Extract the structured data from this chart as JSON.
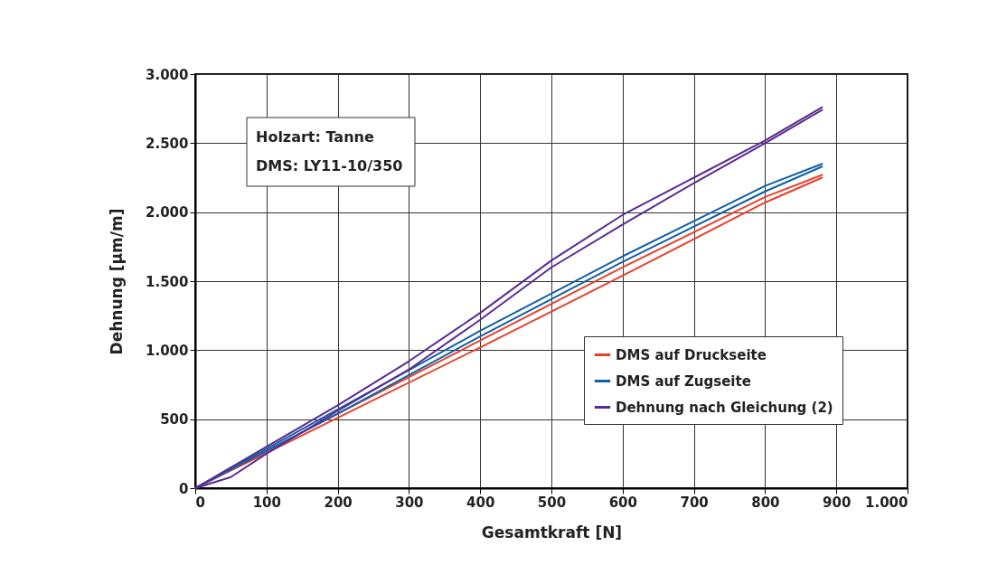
{
  "chart_data": {
    "type": "line",
    "xlabel": "Gesamtkraft [N]",
    "ylabel": "Dehnung [µm/m]",
    "annotations": [
      "Holzart: Tanne",
      "DMS: LY11-10/350"
    ],
    "xlim": [
      0,
      1000
    ],
    "xticks": [
      0,
      100,
      200,
      300,
      400,
      500,
      600,
      700,
      800,
      900,
      {
        "value": 1000,
        "label": "1.000"
      }
    ],
    "ylim": [
      0,
      3000
    ],
    "yticks": [
      0,
      500,
      {
        "value": 1000,
        "label": "1.000"
      },
      {
        "value": 1500,
        "label": "1.500"
      },
      {
        "value": 2000,
        "label": "2.000"
      },
      {
        "value": 2500,
        "label": "2.500"
      },
      {
        "value": 3000,
        "label": "3.000"
      }
    ],
    "grid": true,
    "legend": "bottom right",
    "line_style": "solid",
    "marker": "none",
    "series": [
      {
        "name": "DMS auf Druckseite",
        "color": "#e8412c",
        "x": [
          0,
          200,
          400,
          600,
          800,
          880
        ],
        "values": [
          0,
          540,
          1070,
          1600,
          2110,
          2270
        ]
      },
      {
        "color": "#e8412c",
        "x": [
          0,
          200,
          400,
          600,
          800,
          880
        ],
        "values": [
          0,
          510,
          1020,
          1540,
          2070,
          2250
        ]
      },
      {
        "name": "DMS auf Zugseite",
        "color": "#1160a8",
        "x": [
          0,
          200,
          400,
          600,
          800,
          880
        ],
        "values": [
          0,
          570,
          1140,
          1680,
          2190,
          2350
        ]
      },
      {
        "color": "#1160a8",
        "x": [
          0,
          200,
          400,
          600,
          800,
          880
        ],
        "values": [
          0,
          540,
          1100,
          1640,
          2150,
          2330
        ]
      },
      {
        "name": "Dehnung nach Gleichung (2)",
        "color": "#5b2b91",
        "x": [
          0,
          100,
          200,
          300,
          400,
          500,
          600,
          700,
          800,
          880
        ],
        "values": [
          0,
          300,
          600,
          920,
          1270,
          1650,
          1980,
          2250,
          2520,
          2760
        ]
      },
      {
        "color": "#5b2b91",
        "x": [
          0,
          50,
          100,
          200,
          300,
          400,
          500,
          600,
          700,
          800,
          880
        ],
        "values": [
          0,
          80,
          250,
          560,
          860,
          1220,
          1600,
          1910,
          2210,
          2500,
          2740
        ]
      }
    ]
  }
}
